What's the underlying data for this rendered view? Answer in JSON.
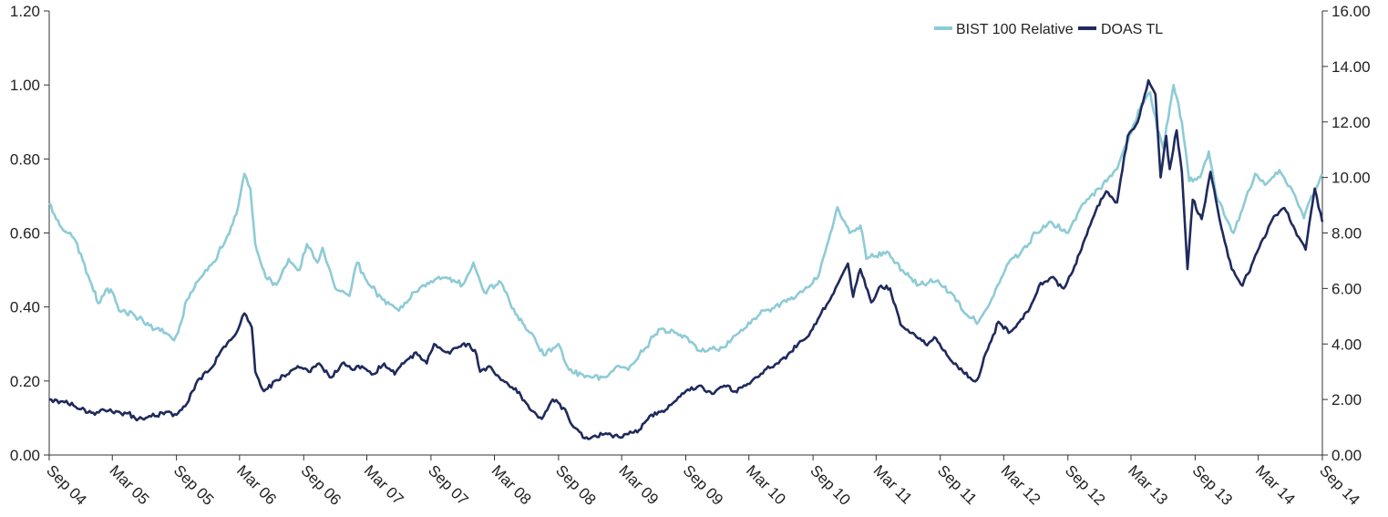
{
  "chart_data": {
    "type": "line",
    "title": "",
    "xlabel": "",
    "ylabel_left": "",
    "ylabel_right": "",
    "x_ticks": [
      "Sep 04",
      "Mar 05",
      "Sep 05",
      "Mar 06",
      "Sep 06",
      "Mar 07",
      "Sep 07",
      "Mar 08",
      "Sep 08",
      "Mar 09",
      "Sep 09",
      "Mar 10",
      "Sep 10",
      "Mar 11",
      "Sep 11",
      "Mar 12",
      "Sep 12",
      "Mar 13",
      "Sep 13",
      "Mar 14",
      "Sep 14"
    ],
    "x_range": [
      "2004-09",
      "2014-09"
    ],
    "y_left": {
      "ylim": [
        0,
        1.2
      ],
      "ticks": [
        "0.00",
        "0.20",
        "0.40",
        "0.60",
        "0.80",
        "1.00",
        "1.20"
      ]
    },
    "y_right": {
      "ylim": [
        0,
        16
      ],
      "ticks": [
        "0.00",
        "2.00",
        "4.00",
        "6.00",
        "8.00",
        "10.00",
        "12.00",
        "14.00",
        "16.00"
      ]
    },
    "grid": false,
    "legend_position": "top-right",
    "series": [
      {
        "name": "BIST 100 Relative",
        "axis": "left",
        "color": "#8ecbd6",
        "points": [
          [
            "2004-09-01",
            0.68
          ],
          [
            "2004-10-01",
            0.62
          ],
          [
            "2004-11-15",
            0.58
          ],
          [
            "2005-01-01",
            0.46
          ],
          [
            "2005-01-20",
            0.41
          ],
          [
            "2005-02-15",
            0.45
          ],
          [
            "2005-03-01",
            0.44
          ],
          [
            "2005-03-20",
            0.39
          ],
          [
            "2005-05-01",
            0.38
          ],
          [
            "2005-06-15",
            0.35
          ],
          [
            "2005-08-01",
            0.33
          ],
          [
            "2005-08-25",
            0.31
          ],
          [
            "2005-09-05",
            0.33
          ],
          [
            "2005-10-01",
            0.42
          ],
          [
            "2005-11-01",
            0.47
          ],
          [
            "2005-12-15",
            0.52
          ],
          [
            "2006-01-20",
            0.58
          ],
          [
            "2006-02-20",
            0.65
          ],
          [
            "2006-03-15",
            0.76
          ],
          [
            "2006-04-01",
            0.72
          ],
          [
            "2006-04-15",
            0.57
          ],
          [
            "2006-05-15",
            0.48
          ],
          [
            "2006-06-15",
            0.46
          ],
          [
            "2006-07-20",
            0.53
          ],
          [
            "2006-08-20",
            0.5
          ],
          [
            "2006-09-10",
            0.57
          ],
          [
            "2006-10-10",
            0.52
          ],
          [
            "2006-10-25",
            0.56
          ],
          [
            "2006-12-01",
            0.45
          ],
          [
            "2007-01-10",
            0.43
          ],
          [
            "2007-02-01",
            0.52
          ],
          [
            "2007-03-01",
            0.47
          ],
          [
            "2007-04-15",
            0.42
          ],
          [
            "2007-06-01",
            0.39
          ],
          [
            "2007-07-15",
            0.44
          ],
          [
            "2007-09-01",
            0.47
          ],
          [
            "2007-10-15",
            0.48
          ],
          [
            "2007-12-01",
            0.46
          ],
          [
            "2008-01-01",
            0.52
          ],
          [
            "2008-02-01",
            0.44
          ],
          [
            "2008-03-15",
            0.47
          ],
          [
            "2008-05-01",
            0.38
          ],
          [
            "2008-06-15",
            0.33
          ],
          [
            "2008-07-20",
            0.27
          ],
          [
            "2008-09-01",
            0.3
          ],
          [
            "2008-10-01",
            0.23
          ],
          [
            "2008-11-15",
            0.21
          ],
          [
            "2009-01-15",
            0.21
          ],
          [
            "2009-02-15",
            0.24
          ],
          [
            "2009-03-20",
            0.23
          ],
          [
            "2009-05-01",
            0.28
          ],
          [
            "2009-06-15",
            0.34
          ],
          [
            "2009-08-01",
            0.33
          ],
          [
            "2009-09-01",
            0.32
          ],
          [
            "2009-10-15",
            0.28
          ],
          [
            "2009-12-15",
            0.29
          ],
          [
            "2010-02-01",
            0.33
          ],
          [
            "2010-04-01",
            0.38
          ],
          [
            "2010-06-01",
            0.41
          ],
          [
            "2010-08-01",
            0.44
          ],
          [
            "2010-09-15",
            0.48
          ],
          [
            "2010-11-10",
            0.67
          ],
          [
            "2010-12-15",
            0.6
          ],
          [
            "2011-01-15",
            0.62
          ],
          [
            "2011-02-01",
            0.53
          ],
          [
            "2011-04-01",
            0.55
          ],
          [
            "2011-05-15",
            0.5
          ],
          [
            "2011-07-01",
            0.46
          ],
          [
            "2011-08-20",
            0.47
          ],
          [
            "2011-10-01",
            0.44
          ],
          [
            "2011-11-15",
            0.38
          ],
          [
            "2011-12-20",
            0.36
          ],
          [
            "2012-02-01",
            0.43
          ],
          [
            "2012-03-15",
            0.52
          ],
          [
            "2012-04-15",
            0.54
          ],
          [
            "2012-06-01",
            0.6
          ],
          [
            "2012-07-15",
            0.63
          ],
          [
            "2012-09-01",
            0.6
          ],
          [
            "2012-10-15",
            0.68
          ],
          [
            "2012-12-01",
            0.72
          ],
          [
            "2013-01-15",
            0.77
          ],
          [
            "2013-02-15",
            0.84
          ],
          [
            "2013-04-01",
            0.95
          ],
          [
            "2013-04-25",
            0.98
          ],
          [
            "2013-05-15",
            0.88
          ],
          [
            "2013-06-01",
            0.83
          ],
          [
            "2013-07-01",
            1.0
          ],
          [
            "2013-07-25",
            0.9
          ],
          [
            "2013-08-15",
            0.74
          ],
          [
            "2013-09-15",
            0.75
          ],
          [
            "2013-10-10",
            0.82
          ],
          [
            "2013-11-01",
            0.7
          ],
          [
            "2013-12-20",
            0.6
          ],
          [
            "2014-01-20",
            0.68
          ],
          [
            "2014-02-20",
            0.76
          ],
          [
            "2014-03-20",
            0.73
          ],
          [
            "2014-05-01",
            0.77
          ],
          [
            "2014-06-15",
            0.7
          ],
          [
            "2014-07-10",
            0.64
          ],
          [
            "2014-08-01",
            0.7
          ],
          [
            "2014-09-01",
            0.76
          ]
        ]
      },
      {
        "name": "DOAS TL",
        "axis": "right",
        "color": "#1f2a5c",
        "points": [
          [
            "2004-09-01",
            2.0
          ],
          [
            "2004-10-15",
            1.9
          ],
          [
            "2004-12-01",
            1.65
          ],
          [
            "2005-01-10",
            1.45
          ],
          [
            "2005-02-01",
            1.65
          ],
          [
            "2005-03-01",
            1.55
          ],
          [
            "2005-04-15",
            1.5
          ],
          [
            "2005-05-15",
            1.3
          ],
          [
            "2005-07-01",
            1.4
          ],
          [
            "2005-08-01",
            1.55
          ],
          [
            "2005-09-01",
            1.45
          ],
          [
            "2005-10-01",
            1.85
          ],
          [
            "2005-11-01",
            2.7
          ],
          [
            "2005-12-15",
            3.2
          ],
          [
            "2006-01-15",
            3.9
          ],
          [
            "2006-02-20",
            4.4
          ],
          [
            "2006-03-15",
            5.1
          ],
          [
            "2006-04-05",
            4.6
          ],
          [
            "2006-04-15",
            3.0
          ],
          [
            "2006-05-10",
            2.3
          ],
          [
            "2006-06-15",
            2.7
          ],
          [
            "2006-07-15",
            2.9
          ],
          [
            "2006-08-15",
            3.2
          ],
          [
            "2006-09-15",
            3.0
          ],
          [
            "2006-10-15",
            3.3
          ],
          [
            "2006-11-20",
            2.8
          ],
          [
            "2006-12-20",
            3.3
          ],
          [
            "2007-01-15",
            3.1
          ],
          [
            "2007-02-15",
            3.2
          ],
          [
            "2007-03-15",
            2.9
          ],
          [
            "2007-04-20",
            3.3
          ],
          [
            "2007-05-20",
            2.9
          ],
          [
            "2007-06-15",
            3.3
          ],
          [
            "2007-07-20",
            3.7
          ],
          [
            "2007-08-20",
            3.3
          ],
          [
            "2007-09-10",
            4.0
          ],
          [
            "2007-10-15",
            3.7
          ],
          [
            "2007-11-20",
            3.9
          ],
          [
            "2007-12-20",
            4.0
          ],
          [
            "2008-01-10",
            3.6
          ],
          [
            "2008-01-20",
            3.0
          ],
          [
            "2008-02-15",
            3.2
          ],
          [
            "2008-03-20",
            2.7
          ],
          [
            "2008-05-01",
            2.4
          ],
          [
            "2008-06-15",
            1.6
          ],
          [
            "2008-07-15",
            1.3
          ],
          [
            "2008-08-15",
            2.0
          ],
          [
            "2008-09-15",
            1.7
          ],
          [
            "2008-10-15",
            1.0
          ],
          [
            "2008-11-15",
            0.6
          ],
          [
            "2008-12-15",
            0.7
          ],
          [
            "2009-01-20",
            0.75
          ],
          [
            "2009-02-20",
            0.65
          ],
          [
            "2009-03-20",
            0.75
          ],
          [
            "2009-04-20",
            0.9
          ],
          [
            "2009-05-20",
            1.4
          ],
          [
            "2009-06-20",
            1.55
          ],
          [
            "2009-07-20",
            1.8
          ],
          [
            "2009-09-01",
            2.3
          ],
          [
            "2009-10-15",
            2.5
          ],
          [
            "2009-11-15",
            2.2
          ],
          [
            "2009-12-20",
            2.5
          ],
          [
            "2010-01-20",
            2.3
          ],
          [
            "2010-02-20",
            2.5
          ],
          [
            "2010-03-20",
            2.8
          ],
          [
            "2010-04-20",
            3.1
          ],
          [
            "2010-05-20",
            3.3
          ],
          [
            "2010-06-20",
            3.6
          ],
          [
            "2010-07-20",
            4.0
          ],
          [
            "2010-08-20",
            4.3
          ],
          [
            "2010-09-20",
            5.0
          ],
          [
            "2010-10-20",
            5.6
          ],
          [
            "2010-11-20",
            6.4
          ],
          [
            "2010-12-10",
            6.9
          ],
          [
            "2010-12-25",
            5.7
          ],
          [
            "2011-01-15",
            6.7
          ],
          [
            "2011-02-15",
            5.5
          ],
          [
            "2011-03-15",
            6.1
          ],
          [
            "2011-04-10",
            6.0
          ],
          [
            "2011-05-10",
            4.7
          ],
          [
            "2011-06-15",
            4.4
          ],
          [
            "2011-07-20",
            4.0
          ],
          [
            "2011-08-20",
            4.2
          ],
          [
            "2011-09-20",
            3.6
          ],
          [
            "2011-10-20",
            3.2
          ],
          [
            "2011-11-20",
            2.8
          ],
          [
            "2011-12-15",
            2.7
          ],
          [
            "2012-01-15",
            3.8
          ],
          [
            "2012-02-15",
            4.8
          ],
          [
            "2012-03-15",
            4.4
          ],
          [
            "2012-04-15",
            4.8
          ],
          [
            "2012-05-15",
            5.3
          ],
          [
            "2012-06-15",
            6.2
          ],
          [
            "2012-07-15",
            6.4
          ],
          [
            "2012-08-20",
            6.0
          ],
          [
            "2012-09-20",
            6.8
          ],
          [
            "2012-10-20",
            7.8
          ],
          [
            "2012-11-20",
            8.8
          ],
          [
            "2012-12-20",
            9.5
          ],
          [
            "2013-01-20",
            9.1
          ],
          [
            "2013-02-20",
            11.5
          ],
          [
            "2013-03-20",
            12.0
          ],
          [
            "2013-04-20",
            13.5
          ],
          [
            "2013-05-10",
            13.0
          ],
          [
            "2013-05-25",
            10.0
          ],
          [
            "2013-06-10",
            11.5
          ],
          [
            "2013-06-20",
            10.3
          ],
          [
            "2013-07-10",
            11.7
          ],
          [
            "2013-07-25",
            10.2
          ],
          [
            "2013-08-10",
            6.7
          ],
          [
            "2013-08-25",
            9.2
          ],
          [
            "2013-09-20",
            8.5
          ],
          [
            "2013-10-15",
            10.2
          ],
          [
            "2013-11-15",
            8.2
          ],
          [
            "2013-12-15",
            6.7
          ],
          [
            "2014-01-15",
            6.1
          ],
          [
            "2014-02-15",
            7.0
          ],
          [
            "2014-03-15",
            7.8
          ],
          [
            "2014-04-15",
            8.6
          ],
          [
            "2014-05-15",
            8.9
          ],
          [
            "2014-06-15",
            8.1
          ],
          [
            "2014-07-15",
            7.4
          ],
          [
            "2014-08-10",
            9.6
          ],
          [
            "2014-09-01",
            8.4
          ]
        ]
      }
    ]
  }
}
